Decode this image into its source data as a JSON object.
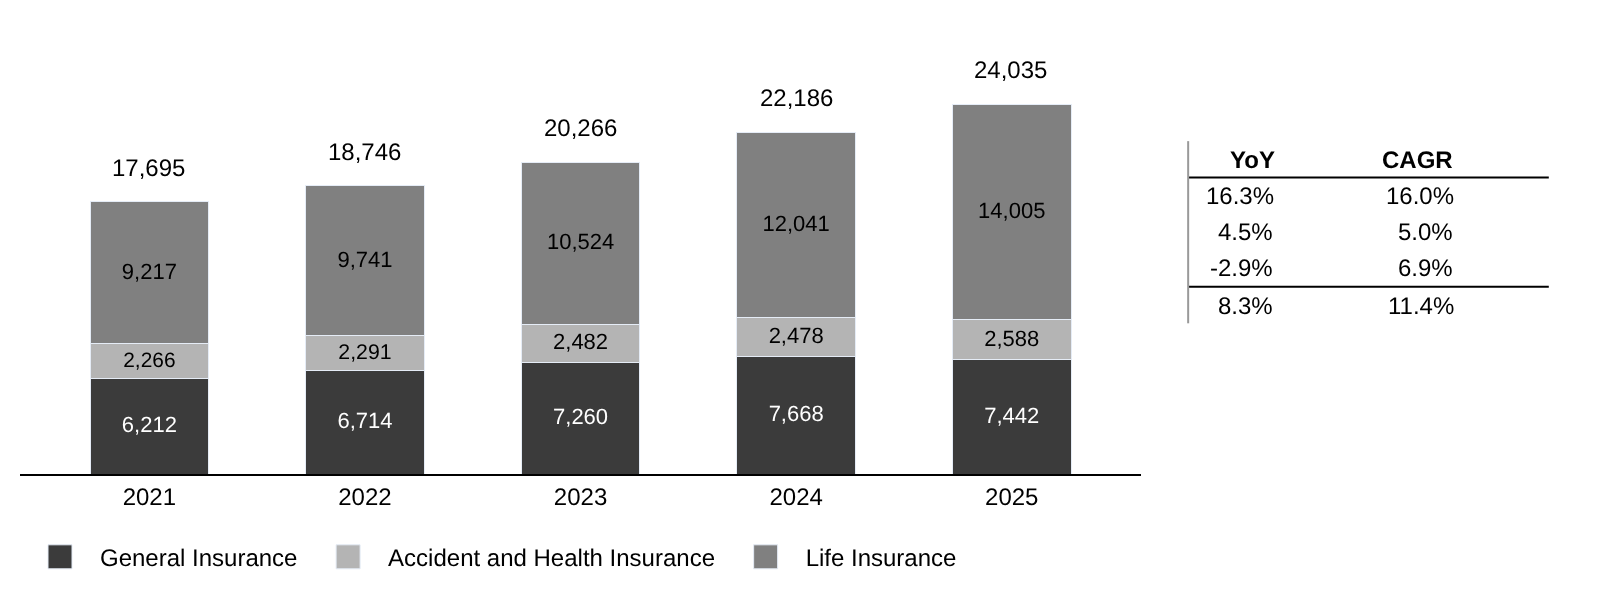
{
  "chart_data": {
    "type": "bar",
    "stacked": true,
    "categories": [
      "2021",
      "2022",
      "2023",
      "2024",
      "2025"
    ],
    "series": [
      {
        "name": "General Insurance",
        "color": "#3b3b3b",
        "values": [
          6212,
          6714,
          7260,
          7668,
          7442
        ],
        "value_labels": [
          "6,212",
          "6,714",
          "7,260",
          "7,668",
          "7,442"
        ]
      },
      {
        "name": "Accident and Health Insurance",
        "color": "#b4b4b4",
        "values": [
          2266,
          2291,
          2482,
          2478,
          2588
        ],
        "value_labels": [
          "2,266",
          "2,291",
          "2,482",
          "2,478",
          "2,588"
        ]
      },
      {
        "name": "Life Insurance",
        "color": "#808080",
        "values": [
          9217,
          9741,
          10524,
          12041,
          14005
        ],
        "value_labels": [
          "9,217",
          "9,741",
          "10,524",
          "12,041",
          "14,005"
        ]
      }
    ],
    "totals": [
      "17,695",
      "18,746",
      "20,266",
      "22,186",
      "24,035"
    ],
    "legend": "bottom",
    "tick_labels": "x",
    "annotations": [
      "YoY",
      "CAGR",
      "16.3%",
      "16.0%",
      "4.5%",
      "5.0%",
      "-2.9%",
      "6.9%",
      "8.3%",
      "11.4%"
    ]
  }
}
